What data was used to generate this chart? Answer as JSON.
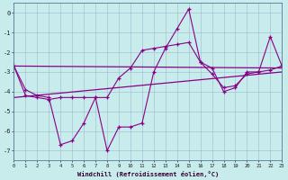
{
  "xlabel": "Windchill (Refroidissement éolien,°C)",
  "xlim": [
    0,
    23
  ],
  "ylim": [
    -7.5,
    0.5
  ],
  "yticks": [
    0,
    -1,
    -2,
    -3,
    -4,
    -5,
    -6,
    -7
  ],
  "xticks": [
    0,
    1,
    2,
    3,
    4,
    5,
    6,
    7,
    8,
    9,
    10,
    11,
    12,
    13,
    14,
    15,
    16,
    17,
    18,
    19,
    20,
    21,
    22,
    23
  ],
  "background_color": "#c8ecec",
  "grid_color": "#a0b8cc",
  "line_color": "#880088",
  "series1_x": [
    0,
    1,
    2,
    3,
    4,
    5,
    6,
    7,
    8,
    9,
    10,
    11,
    12,
    13,
    14,
    15,
    16,
    17,
    18,
    19,
    20,
    21,
    22,
    23
  ],
  "series1_y": [
    -2.7,
    -3.9,
    -4.2,
    -4.3,
    -6.7,
    -6.5,
    -5.6,
    -4.3,
    -7.0,
    -5.8,
    -5.8,
    -5.6,
    -3.0,
    -1.8,
    -0.8,
    0.2,
    -2.5,
    -3.1,
    -3.8,
    -3.7,
    -3.1,
    -3.0,
    -1.2,
    -2.7
  ],
  "series2_x": [
    0,
    1,
    2,
    3,
    4,
    5,
    6,
    7,
    8,
    9,
    10,
    11,
    12,
    13,
    14,
    15,
    16,
    17,
    18,
    19,
    20,
    21,
    22,
    23
  ],
  "series2_y": [
    -2.7,
    -4.2,
    -4.3,
    -4.4,
    -4.3,
    -4.3,
    -4.3,
    -4.3,
    -4.3,
    -3.3,
    -2.8,
    -1.9,
    -1.8,
    -1.7,
    -1.6,
    -1.5,
    -2.5,
    -2.8,
    -4.0,
    -3.8,
    -3.0,
    -3.0,
    -2.9,
    -2.7
  ],
  "trend1_x": [
    0,
    23
  ],
  "trend1_y": [
    -4.3,
    -3.0
  ],
  "trend2_x": [
    0,
    23
  ],
  "trend2_y": [
    -2.7,
    -2.8
  ]
}
